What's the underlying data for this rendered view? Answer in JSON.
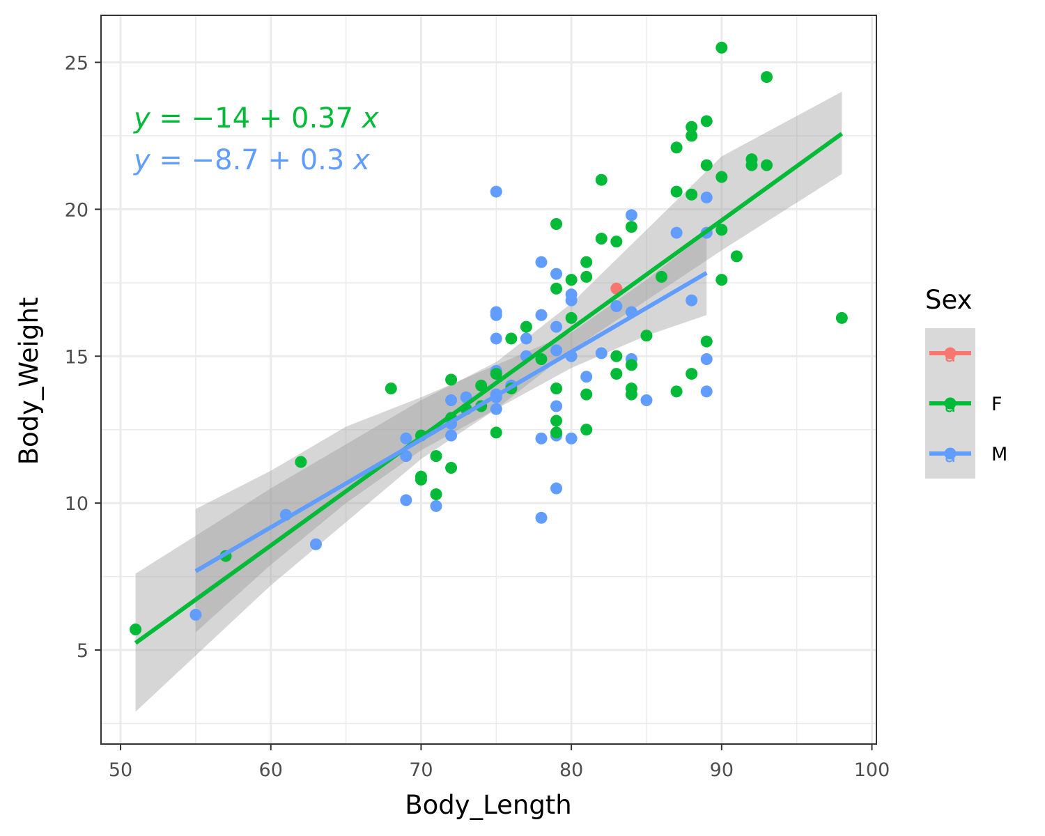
{
  "chart_data": {
    "type": "scatter",
    "xlabel": "Body_Length",
    "ylabel": "Body_Weight",
    "xlim": [
      48.7,
      100.3
    ],
    "ylim": [
      1.8,
      26.6
    ],
    "x_ticks": [
      50,
      60,
      70,
      80,
      90,
      100
    ],
    "y_ticks": [
      5,
      10,
      15,
      20,
      25
    ],
    "x_tick_labels": [
      "50",
      "60",
      "70",
      "80",
      "90",
      "100"
    ],
    "y_tick_labels": [
      "5",
      "10",
      "15",
      "20",
      "25"
    ],
    "grid": true,
    "legend": {
      "title": "Sex",
      "position": "right",
      "entries": [
        {
          "label": "",
          "color": "#F8766D"
        },
        {
          "label": "F",
          "color": "#00BA38"
        },
        {
          "label": "M",
          "color": "#619CFF"
        }
      ]
    },
    "annotations": [
      {
        "text_lhs": "y",
        "text_eq": " = ",
        "text_int": "−14",
        "text_plus": " + ",
        "text_slope": "0.37",
        "text_x": " x",
        "color": "#00BA38"
      },
      {
        "text_lhs": "y",
        "text_eq": " = ",
        "text_int": "−8.7",
        "text_plus": " + ",
        "text_slope": "0.3",
        "text_x": " x",
        "color": "#619CFF"
      }
    ],
    "series": [
      {
        "name": "",
        "color": "#F8766D",
        "points": [
          [
            83,
            17.3
          ]
        ]
      },
      {
        "name": "F",
        "color": "#00BA38",
        "fit": {
          "intercept": -13.57,
          "slope": 0.3688,
          "x_range": [
            51,
            98
          ]
        },
        "band": [
          [
            51,
            2.9,
            7.6
          ],
          [
            60,
            7.2,
            10.5
          ],
          [
            70,
            11.5,
            13.5
          ],
          [
            75,
            13.2,
            14.8
          ],
          [
            80,
            15.2,
            16.8
          ],
          [
            85,
            16.9,
            19.3
          ],
          [
            90,
            18.6,
            21.8
          ],
          [
            98,
            21.2,
            24.0
          ]
        ],
        "points": [
          [
            51,
            5.7
          ],
          [
            57,
            8.2
          ],
          [
            62,
            11.4
          ],
          [
            68,
            13.9
          ],
          [
            70,
            12.3
          ],
          [
            70,
            10.9
          ],
          [
            70,
            10.8
          ],
          [
            71,
            11.6
          ],
          [
            71,
            10.3
          ],
          [
            72,
            14.2
          ],
          [
            72,
            12.9
          ],
          [
            72,
            11.2
          ],
          [
            73,
            13.2
          ],
          [
            74,
            14.0
          ],
          [
            74,
            13.3
          ],
          [
            75,
            12.4
          ],
          [
            75,
            14.4
          ],
          [
            76,
            15.6
          ],
          [
            76,
            13.9
          ],
          [
            77,
            16.0
          ],
          [
            78,
            14.9
          ],
          [
            79,
            19.5
          ],
          [
            79,
            17.3
          ],
          [
            79,
            13.9
          ],
          [
            79,
            12.8
          ],
          [
            79,
            12.4
          ],
          [
            80,
            17.6
          ],
          [
            80,
            16.3
          ],
          [
            81,
            18.2
          ],
          [
            81,
            17.7
          ],
          [
            81,
            13.7
          ],
          [
            81,
            12.5
          ],
          [
            82,
            21.0
          ],
          [
            82,
            19.0
          ],
          [
            83,
            18.9
          ],
          [
            83,
            15.0
          ],
          [
            83,
            14.4
          ],
          [
            84,
            19.4
          ],
          [
            84,
            14.7
          ],
          [
            84,
            13.9
          ],
          [
            84,
            13.7
          ],
          [
            85,
            15.7
          ],
          [
            86,
            17.7
          ],
          [
            87,
            22.1
          ],
          [
            87,
            20.6
          ],
          [
            87,
            13.8
          ],
          [
            88,
            22.8
          ],
          [
            88,
            22.5
          ],
          [
            88,
            20.5
          ],
          [
            88,
            14.4
          ],
          [
            89,
            23.0
          ],
          [
            89,
            21.5
          ],
          [
            89,
            15.5
          ],
          [
            90,
            25.5
          ],
          [
            90,
            21.1
          ],
          [
            90,
            19.3
          ],
          [
            90,
            17.6
          ],
          [
            91,
            18.4
          ],
          [
            92,
            21.7
          ],
          [
            92,
            21.5
          ],
          [
            93,
            24.5
          ],
          [
            93,
            21.5
          ],
          [
            98,
            16.3
          ]
        ]
      },
      {
        "name": "M",
        "color": "#619CFF",
        "fit": {
          "intercept": -8.74,
          "slope": 0.2986,
          "x_range": [
            55,
            89
          ]
        },
        "band": [
          [
            55,
            5.6,
            9.8
          ],
          [
            60,
            7.9,
            11.1
          ],
          [
            65,
            10.0,
            12.6
          ],
          [
            70,
            11.8,
            13.6
          ],
          [
            75,
            13.2,
            14.7
          ],
          [
            80,
            14.6,
            15.8
          ],
          [
            85,
            15.7,
            17.6
          ],
          [
            89,
            16.4,
            19.2
          ]
        ],
        "points": [
          [
            55,
            6.2
          ],
          [
            61,
            9.6
          ],
          [
            63,
            8.6
          ],
          [
            69,
            12.2
          ],
          [
            69,
            11.6
          ],
          [
            69,
            10.1
          ],
          [
            71,
            9.9
          ],
          [
            72,
            13.5
          ],
          [
            72,
            12.7
          ],
          [
            72,
            12.3
          ],
          [
            73,
            13.6
          ],
          [
            75,
            20.6
          ],
          [
            75,
            16.5
          ],
          [
            75,
            16.4
          ],
          [
            75,
            15.6
          ],
          [
            75,
            14.5
          ],
          [
            75,
            13.7
          ],
          [
            75,
            13.6
          ],
          [
            75,
            13.2
          ],
          [
            76,
            14.0
          ],
          [
            77,
            15.6
          ],
          [
            77,
            15.0
          ],
          [
            78,
            18.2
          ],
          [
            78,
            16.4
          ],
          [
            78,
            12.2
          ],
          [
            78,
            9.5
          ],
          [
            79,
            17.8
          ],
          [
            79,
            16.0
          ],
          [
            79,
            15.2
          ],
          [
            79,
            13.3
          ],
          [
            79,
            12.3
          ],
          [
            79,
            10.5
          ],
          [
            80,
            17.1
          ],
          [
            80,
            16.9
          ],
          [
            80,
            15.0
          ],
          [
            80,
            12.2
          ],
          [
            81,
            14.3
          ],
          [
            82,
            15.1
          ],
          [
            83,
            16.7
          ],
          [
            84,
            19.8
          ],
          [
            84,
            16.5
          ],
          [
            84,
            14.9
          ],
          [
            85,
            13.5
          ],
          [
            87,
            19.2
          ],
          [
            88,
            16.9
          ],
          [
            89,
            20.4
          ],
          [
            89,
            19.2
          ],
          [
            89,
            14.9
          ],
          [
            89,
            13.8
          ]
        ]
      }
    ]
  }
}
